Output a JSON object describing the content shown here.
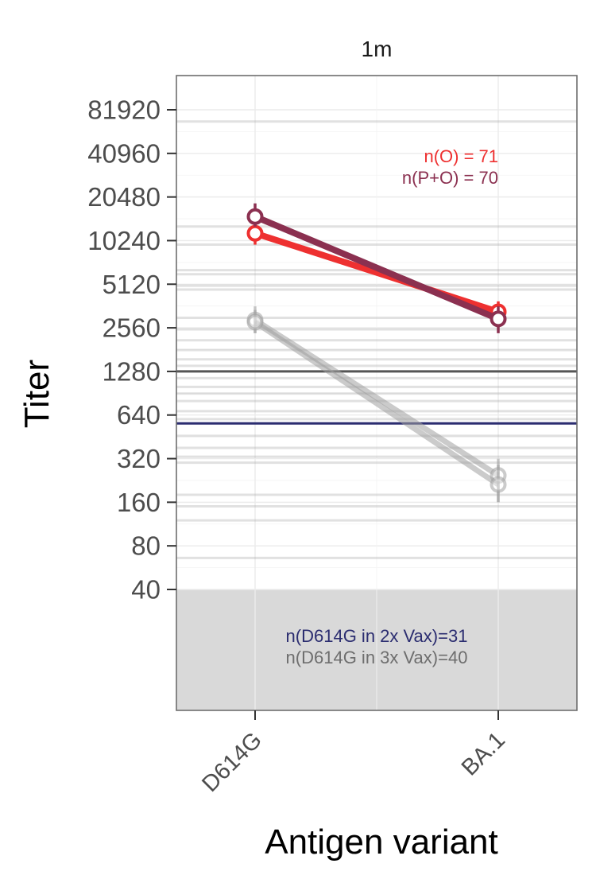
{
  "chart_data": {
    "type": "line",
    "facet_label": "1m",
    "xlabel": "Antigen variant",
    "ylabel": "Titer",
    "y_scale": "log2",
    "ylim": [
      14,
      131072
    ],
    "categories": [
      "D614G",
      "BA.1"
    ],
    "y_ticks": [
      40,
      80,
      160,
      320,
      640,
      1280,
      2560,
      5120,
      10240,
      20480,
      40960,
      81920
    ],
    "y_tick_labels": [
      "40",
      "80",
      "160",
      "320",
      "640",
      "1280",
      "2560",
      "5120",
      "10240",
      "20480",
      "40960",
      "81920"
    ],
    "lod_region": {
      "below": 40,
      "color": "#d9d9d9"
    },
    "series": [
      {
        "name": "O",
        "color": "#ee3030",
        "values": [
          11500,
          3300
        ],
        "ci_low": [
          9600,
          2700
        ],
        "ci_high": [
          13500,
          3900
        ]
      },
      {
        "name": "P+O",
        "color": "#8b3050",
        "values": [
          15000,
          2950
        ],
        "ci_low": [
          12800,
          2350
        ],
        "ci_high": [
          18500,
          3600
        ]
      },
      {
        "name": "",
        "color": "#a0a0a0",
        "values": [
          2900,
          245
        ],
        "ci_low": [
          2350,
          160
        ],
        "ci_high": [
          3600,
          320
        ]
      },
      {
        "name": "",
        "color": "#a0a0a0",
        "values": [
          2800,
          212
        ],
        "ci_low": [
          2350,
          160
        ],
        "ci_high": [
          3400,
          290
        ]
      }
    ],
    "reference_lines": [
      {
        "value": 1280,
        "color": "#555555"
      },
      {
        "value": 560,
        "color": "#2b2d70"
      }
    ],
    "background_lines": [
      68000,
      12800,
      9600,
      6400,
      6000,
      5000,
      4700,
      3000,
      2500,
      2100,
      1800,
      1550,
      1400,
      1150,
      1000,
      900,
      800,
      680,
      600,
      460,
      380,
      330,
      300,
      180,
      150,
      120,
      66
    ],
    "annotations": [
      {
        "text": "n(O) = 71",
        "color": "#ee3030"
      },
      {
        "text": "n(P+O) = 70",
        "color": "#8b3050"
      },
      {
        "text": "n(D614G in 2x Vax)=31",
        "color": "#2b2d70"
      },
      {
        "text": "n(D614G in 3x Vax)=40",
        "color": "#6e6e6e"
      }
    ]
  }
}
